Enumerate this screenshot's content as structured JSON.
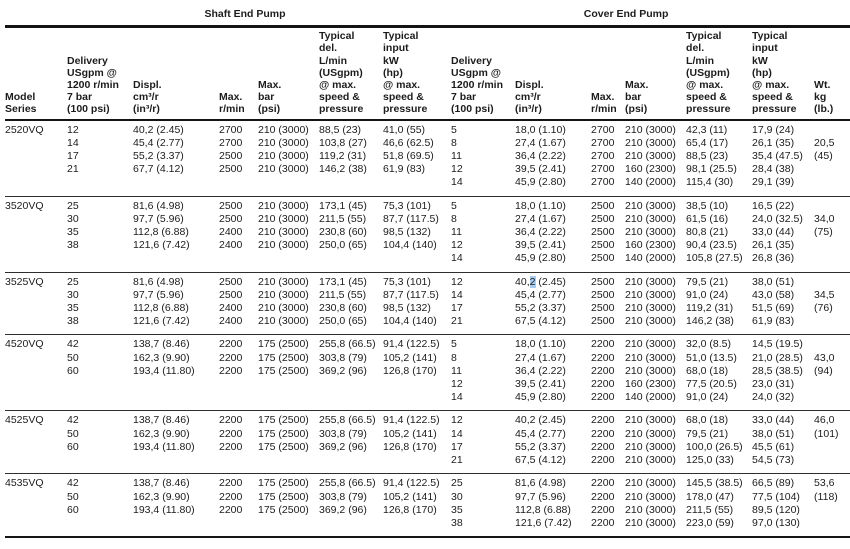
{
  "sections": {
    "shaft": "Shaft End Pump",
    "cover": "Cover End Pump"
  },
  "columns": {
    "model": "Model\nSeries",
    "delivery": "Delivery\nUSgpm @\n1200 r/min\n7 bar\n(100 psi)",
    "displ": "Displ.\ncm³/r\n(in³/r)",
    "rpm": "Max.\nr/min",
    "bar": "Max.\nbar\n(psi)",
    "typ_del": "Typical\ndel.\nL/min\n(USgpm)\n@ max.\nspeed &\npressure",
    "typ_input": "Typical\ninput\nkW\n(hp)\n@ max.\nspeed &\npressure",
    "wt": "Wt.\nkg\n(lb.)"
  },
  "highlight_color": "#a9cdf0",
  "groups": [
    {
      "model": "2520VQ",
      "rows": [
        [
          "2520VQ",
          "12",
          "40,2 (2.45)",
          "2700",
          "210 (3000)",
          "88,5 (23)",
          "41,0 (55)",
          "5",
          "18,0 (1.10)",
          "2700",
          "210 (3000)",
          "42,3 (11)",
          "17,9 (24)",
          ""
        ],
        [
          "",
          "14",
          "45,4 (2.77)",
          "2700",
          "210 (3000)",
          "103,8 (27)",
          "46,6 (62.5)",
          "8",
          "27,4 (1.67)",
          "2700",
          "210 (3000)",
          "65,4 (17)",
          "26,1 (35)",
          "20,5"
        ],
        [
          "",
          "17",
          "55,2 (3.37)",
          "2500",
          "210 (3000)",
          "119,2 (31)",
          "51,8 (69.5)",
          "11",
          "36,4 (2.22)",
          "2700",
          "210 (3000)",
          "88,5 (23)",
          "35,4 (47.5)",
          "(45)"
        ],
        [
          "",
          "21",
          "67,7 (4.12)",
          "2500",
          "210 (3000)",
          "146,2 (38)",
          "61,9 (83)",
          "12",
          "39,5 (2.41)",
          "2700",
          "160 (2300)",
          "98,1 (25.5)",
          "28,4 (38)",
          ""
        ],
        [
          "",
          "",
          "",
          "",
          "",
          "",
          "",
          "14",
          "45,9 (2.80)",
          "2700",
          "140 (2000)",
          "115,4 (30)",
          "29,1 (39)",
          ""
        ]
      ]
    },
    {
      "model": "3520VQ",
      "rows": [
        [
          "3520VQ",
          "25",
          "81,6 (4.98)",
          "2500",
          "210 (3000)",
          "173,1 (45)",
          "75,3 (101)",
          "5",
          "18,0 (1.10)",
          "2500",
          "210 (3000)",
          "38,5 (10)",
          "16,5 (22)",
          ""
        ],
        [
          "",
          "30",
          "97,7 (5.96)",
          "2500",
          "210 (3000)",
          "211,5 (55)",
          "87,7 (117.5)",
          "8",
          "27,4 (1.67)",
          "2500",
          "210 (3000)",
          "61,5 (16)",
          "24,0 (32.5)",
          "34,0"
        ],
        [
          "",
          "35",
          "112,8 (6.88)",
          "2400",
          "210 (3000)",
          "230,8 (60)",
          "98,5 (132)",
          "11",
          "36,4 (2.22)",
          "2500",
          "210 (3000)",
          "80,8 (21)",
          "33,0 (44)",
          "(75)"
        ],
        [
          "",
          "38",
          "121,6 (7.42)",
          "2400",
          "210 (3000)",
          "250,0 (65)",
          "104,4 (140)",
          "12",
          "39,5 (2.41)",
          "2500",
          "160 (2300)",
          "90,4 (23.5)",
          "26,1 (35)",
          ""
        ],
        [
          "",
          "",
          "",
          "",
          "",
          "",
          "",
          "14",
          "45,9 (2.80)",
          "2500",
          "140 (2000)",
          "105,8 (27.5)",
          "26,8 (36)",
          ""
        ]
      ]
    },
    {
      "model": "3525VQ",
      "rows": [
        [
          "3525VQ",
          "25",
          "81,6 (4.98)",
          "2500",
          "210 (3000)",
          "173,1 (45)",
          "75,3 (101)",
          "12",
          {
            "pre": "40,",
            "hl": "2",
            "post": " (2.45)"
          },
          "2500",
          "210 (3000)",
          "79,5 (21)",
          "38,0 (51)",
          ""
        ],
        [
          "",
          "30",
          "97,7 (5.96)",
          "2500",
          "210 (3000)",
          "211,5 (55)",
          "87,7 (117.5)",
          "14",
          "45,4 (2.77)",
          "2500",
          "210 (3000)",
          "91,0 (24)",
          "43,0 (58)",
          "34,5"
        ],
        [
          "",
          "35",
          "112,8 (6.88)",
          "2400",
          "210 (3000)",
          "230,8 (60)",
          "98,5 (132)",
          "17",
          "55,2 (3.37)",
          "2500",
          "210 (3000)",
          "119,2 (31)",
          "51,5 (69)",
          "(76)"
        ],
        [
          "",
          "38",
          "121,6 (7.42)",
          "2400",
          "210 (3000)",
          "250,0 (65)",
          "104,4 (140)",
          "21",
          "67,5 (4.12)",
          "2500",
          "210 (3000)",
          "146,2 (38)",
          "61,9 (83)",
          ""
        ]
      ]
    },
    {
      "model": "4520VQ",
      "rows": [
        [
          "4520VQ",
          "42",
          "138,7 (8.46)",
          "2200",
          "175 (2500)",
          "255,8 (66.5)",
          "91,4 (122.5)",
          "5",
          "18,0 (1.10)",
          "2200",
          "210 (3000)",
          "32,0 (8.5)",
          "14,5 (19.5)",
          ""
        ],
        [
          "",
          "50",
          "162,3 (9.90)",
          "2200",
          "175 (2500)",
          "303,8 (79)",
          "105,2 (141)",
          "8",
          "27,4 (1.67)",
          "2200",
          "210 (3000)",
          "51,0 (13.5)",
          "21,0 (28.5)",
          "43,0"
        ],
        [
          "",
          "60",
          "193,4 (11.80)",
          "2200",
          "175 (2500)",
          "369,2 (96)",
          "126,8 (170)",
          "11",
          "36,4 (2.22)",
          "2200",
          "210 (3000)",
          "68,0 (18)",
          "28,5 (38.5)",
          "(94)"
        ],
        [
          "",
          "",
          "",
          "",
          "",
          "",
          "",
          "12",
          "39,5 (2.41)",
          "2200",
          "160 (2300)",
          "77,5 (20.5)",
          "23,0 (31)",
          ""
        ],
        [
          "",
          "",
          "",
          "",
          "",
          "",
          "",
          "14",
          "45,9 (2.80)",
          "2200",
          "140 (2000)",
          "91,0 (24)",
          "24,0 (32)",
          ""
        ]
      ]
    },
    {
      "model": "4525VQ",
      "rows": [
        [
          "4525VQ",
          "42",
          "138,7 (8.46)",
          "2200",
          "175 (2500)",
          "255,8 (66.5)",
          "91,4 (122.5)",
          "12",
          "40,2 (2.45)",
          "2200",
          "210 (3000)",
          "68,0 (18)",
          "33,0 (44)",
          "46,0"
        ],
        [
          "",
          "50",
          "162,3 (9.90)",
          "2200",
          "175 (2500)",
          "303,8 (79)",
          "105,2 (141)",
          "14",
          "45,4 (2.77)",
          "2200",
          "210 (3000)",
          "79,5 (21)",
          "38,0 (51)",
          "(101)"
        ],
        [
          "",
          "60",
          "193,4 (11.80)",
          "2200",
          "175 (2500)",
          "369,2 (96)",
          "126,8 (170)",
          "17",
          "55,2 (3.37)",
          "2200",
          "210 (3000)",
          "100,0 (26.5)",
          "45,5 (61)",
          ""
        ],
        [
          "",
          "",
          "",
          "",
          "",
          "",
          "",
          "21",
          "67,5 (4.12)",
          "2200",
          "210 (3000)",
          "125,0 (33)",
          "54,5 (73)",
          ""
        ]
      ]
    },
    {
      "model": "4535VQ",
      "rows": [
        [
          "4535VQ",
          "42",
          "138,7 (8.46)",
          "2200",
          "175 (2500)",
          "255,8 (66.5)",
          "91,4 (122.5)",
          "25",
          "81,6 (4.98)",
          "2200",
          "210 (3000)",
          "145,5 (38.5)",
          "66,5 (89)",
          "53,6"
        ],
        [
          "",
          "50",
          "162,3 (9.90)",
          "2200",
          "175 (2500)",
          "303,8 (79)",
          "105,2 (141)",
          "30",
          "97,7 (5.96)",
          "2200",
          "210 (3000)",
          "178,0 (47)",
          "77,5 (104)",
          "(118)"
        ],
        [
          "",
          "60",
          "193,4 (11.80)",
          "2200",
          "175 (2500)",
          "369,2 (96)",
          "126,8 (170)",
          "35",
          "112,8 (6.88)",
          "2200",
          "210 (3000)",
          "211,5 (55)",
          "89,5 (120)",
          ""
        ],
        [
          "",
          "",
          "",
          "",
          "",
          "",
          "",
          "38",
          "121,6 (7.42)",
          "2200",
          "210 (3000)",
          "223,0 (59)",
          "97,0 (130)",
          ""
        ]
      ]
    }
  ]
}
